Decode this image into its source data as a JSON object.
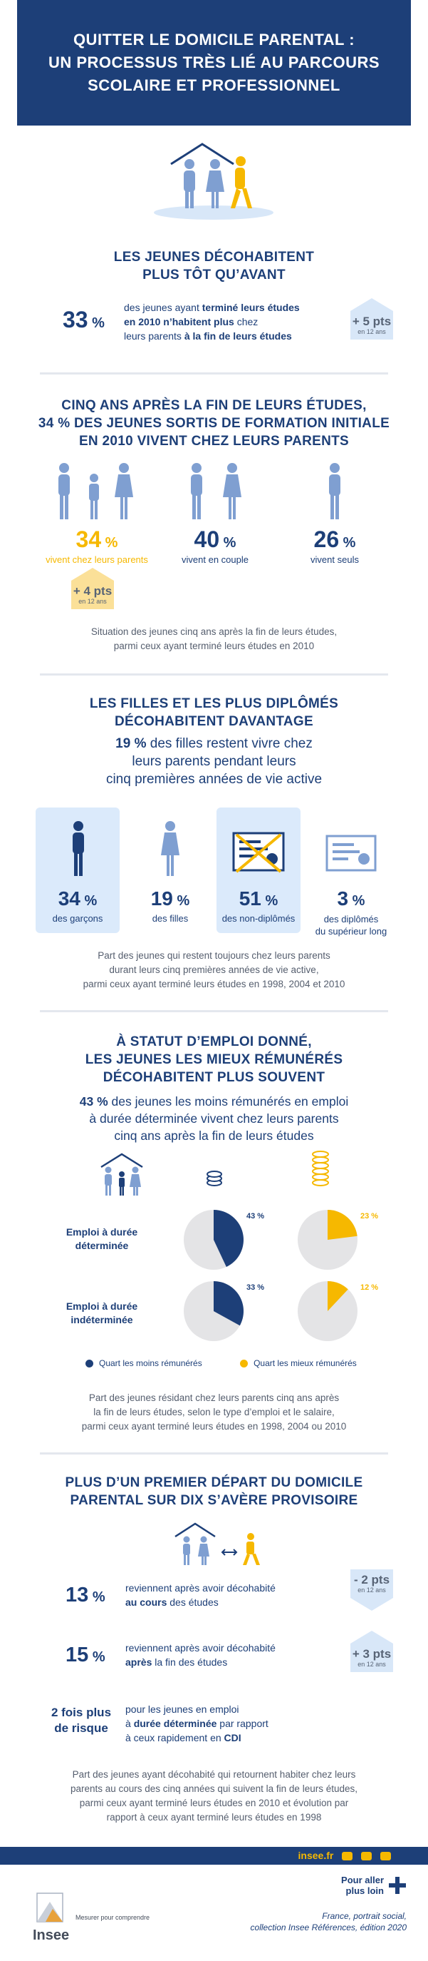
{
  "header": {
    "title_line1": "QUITTER LE DOMICILE PARENTAL :",
    "title_line2": "UN PROCESSUS TRÈS LIÉ AU PARCOURS",
    "title_line3": "SCOLAIRE ET PROFESSIONNEL"
  },
  "s1": {
    "title_line1": "LES JEUNES DÉCOHABITENT",
    "title_line2": "PLUS TÔT QU’AVANT",
    "stat": "33",
    "stat_unit": "%",
    "text_a": "des jeunes ayant ",
    "text_b": "terminé leurs études",
    "text_c": "en 2010 n’habitent plus",
    "text_d": " chez",
    "text_e": "leurs parents ",
    "text_f": "à la fin de leurs études",
    "delta": "+ 5 pts",
    "delta_sub": "en 12 ans"
  },
  "s2": {
    "title_line1": "CINQ ANS APRÈS LA FIN DE LEURS ÉTUDES,",
    "title_line2": "34 % DES JEUNES SORTIS DE FORMATION INITIALE",
    "title_line3": "EN 2010 VIVENT CHEZ LEURS PARENTS",
    "items": [
      {
        "value": "34",
        "unit": "%",
        "label": "vivent chez leurs parents"
      },
      {
        "value": "40",
        "unit": "%",
        "label": "vivent en couple"
      },
      {
        "value": "26",
        "unit": "%",
        "label": "vivent seuls"
      }
    ],
    "delta": "+ 4 pts",
    "delta_sub": "en 12 ans",
    "note_line1": "Situation des jeunes cinq ans après la fin de leurs études,",
    "note_line2": "parmi ceux ayant terminé leurs études en 2010"
  },
  "s3": {
    "title_line1": "LES FILLES ET LES PLUS DIPLÔMÉS",
    "title_line2": "DÉCOHABITENT DAVANTAGE",
    "intro_bold": "19 %",
    "intro_a": " des filles restent vivre chez",
    "intro_b": "leurs parents pendant leurs",
    "intro_c": "cinq premières années de vie active",
    "items": [
      {
        "value": "34",
        "unit": "%",
        "label1": "des garçons",
        "label2": ""
      },
      {
        "value": "19",
        "unit": "%",
        "label1": "des filles",
        "label2": ""
      },
      {
        "value": "51",
        "unit": "%",
        "label1": "des non-diplômés",
        "label2": ""
      },
      {
        "value": "3",
        "unit": "%",
        "label1": "des diplômés",
        "label2": "du supérieur long"
      }
    ],
    "note_line1": "Part des jeunes qui restent toujours chez leurs parents",
    "note_line2": "durant leurs cinq premières années de vie active,",
    "note_line3": "parmi ceux ayant terminé leurs études en 1998, 2004 et 2010"
  },
  "s4": {
    "title_line1": "À STATUT D’EMPLOI DONNÉ,",
    "title_line2": "LES JEUNES LES MIEUX RÉMUNÉRÉS",
    "title_line3": "DÉCOHABITENT PLUS SOUVENT",
    "intro_bold": "43 %",
    "intro_a": " des jeunes les moins rémunérés en emploi",
    "intro_b": "à durée déterminée vivent chez leurs parents",
    "intro_c": "cinq ans après la fin de leurs études",
    "row1_label1": "Emploi à durée",
    "row1_label2": "déterminée",
    "row2_label1": "Emploi à durée",
    "row2_label2": "indéterminée",
    "legend_low": "Quart les moins rémunérés",
    "legend_high": "Quart les mieux rémunérés",
    "note_line1": "Part des jeunes résidant chez leurs parents cinq ans après",
    "note_line2": "la fin de leurs études, selon le type d’emploi et le salaire,",
    "note_line3": "parmi ceux ayant terminé leurs études en 1998, 2004 ou 2010",
    "color_low": "#1d3f78",
    "color_high": "#f6b800"
  },
  "chart_data": {
    "type": "pie",
    "title": "",
    "categories": [
      "Emploi à durée déterminée",
      "Emploi à durée indéterminée"
    ],
    "series": [
      {
        "name": "Quart les moins rémunérés",
        "values": [
          43,
          33
        ],
        "labels": [
          "43 %",
          "33 %"
        ]
      },
      {
        "name": "Quart les mieux rémunérés",
        "values": [
          23,
          12
        ],
        "labels": [
          "23 %",
          "12 %"
        ]
      }
    ]
  },
  "s5": {
    "title_line1": "PLUS D’UN PREMIER DÉPART DU DOMICILE",
    "title_line2": "PARENTAL SUR DIX S’AVÈRE PROVISOIRE",
    "rows": [
      {
        "value": "13",
        "unit": "%",
        "text_a": "reviennent après avoir décohabité",
        "text_b": "au cours",
        "text_c": " des études",
        "delta": "- 2 pts",
        "delta_sub": "en 12 ans"
      },
      {
        "value": "15",
        "unit": "%",
        "text_a": "reviennent après avoir décohabité",
        "text_b": "après",
        "text_c": " la fin des études",
        "delta": "+ 3 pts",
        "delta_sub": "en 12 ans"
      }
    ],
    "risk_big1": "2 fois plus",
    "risk_big2": "de risque",
    "risk_a": "pour les jeunes en emploi",
    "risk_b1": "à ",
    "risk_b2": "durée déterminée",
    "risk_b3": " par rapport",
    "risk_c1": "à ceux rapidement en ",
    "risk_c2": "CDI",
    "note_line1": "Part des jeunes ayant décohabité qui retournent habiter chez leurs",
    "note_line2": "parents au cours des cinq années qui suivent la fin de leurs études,",
    "note_line3": "parmi ceux ayant terminé leurs études en 2010 et évolution par",
    "note_line4": "rapport à ceux ayant terminé leurs études en 1998"
  },
  "footer": {
    "site": "insee.fr",
    "logo_text": "Insee",
    "tagline": "Mesurer pour comprendre",
    "more_line1": "Pour aller",
    "more_line2": "plus loin",
    "ref_line1": "France, portrait social,",
    "ref_line2": "collection Insee Références, édition 2020"
  }
}
